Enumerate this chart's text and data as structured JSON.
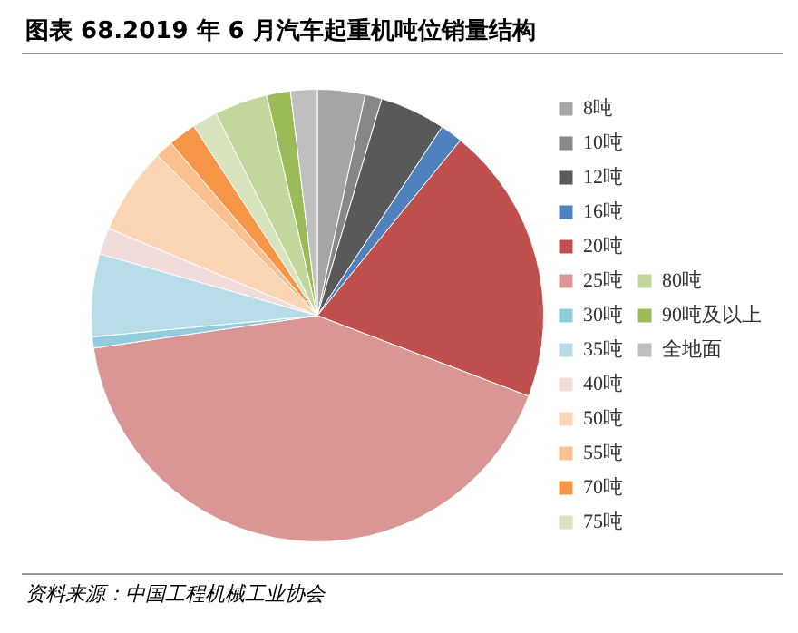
{
  "chart_data": {
    "type": "pie",
    "title": "图表 68.2019 年 6 月汽车起重机吨位销量结构",
    "categories": [
      "8吨",
      "10吨",
      "12吨",
      "16吨",
      "20吨",
      "25吨",
      "30吨",
      "35吨",
      "40吨",
      "50吨",
      "55吨",
      "70吨",
      "75吨",
      "80吨",
      "90吨及以上",
      "全地面"
    ],
    "values": [
      3.4,
      1.2,
      4.7,
      1.6,
      19.9,
      41.9,
      0.8,
      5.9,
      1.9,
      6.2,
      1.3,
      2.0,
      1.8,
      3.8,
      1.7,
      1.9
    ],
    "colors": [
      "#a5a5a5",
      "#878787",
      "#595959",
      "#4f81bd",
      "#c0504d",
      "#d99694",
      "#93cddd",
      "#b7dee8",
      "#f2dcdb",
      "#fcd5b5",
      "#fac090",
      "#f79646",
      "#d7e4bd",
      "#c3d69b",
      "#9bbb59",
      "#bfbfbf"
    ],
    "legend": "right",
    "annotations": [
      "资料来源：中国工程机械工业协会"
    ]
  }
}
